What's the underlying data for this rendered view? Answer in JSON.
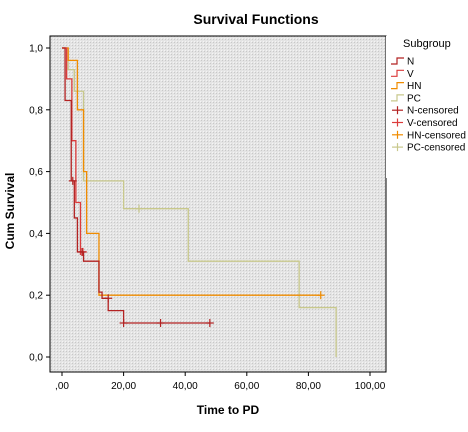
{
  "chart_data": {
    "type": "line",
    "title": "Survival Functions",
    "xlabel": "Time to PD",
    "ylabel": "Cum Survival",
    "xlim": [
      0,
      100
    ],
    "ylim": [
      0,
      1
    ],
    "x_ticks": [
      ",00",
      "20,00",
      "40,00",
      "60,00",
      "80,00",
      "100,00"
    ],
    "y_ticks": [
      "0,0",
      "0,2",
      "0,4",
      "0,6",
      "0,8",
      "1,0"
    ],
    "legend_title": "Subgroup",
    "legend_position": "right",
    "grid": false,
    "plot_background": "#eaeaea",
    "series": [
      {
        "name": "N",
        "color": "#b22222",
        "steps": [
          [
            0,
            1.0
          ],
          [
            1,
            0.83
          ],
          [
            3,
            0.57
          ],
          [
            4,
            0.45
          ],
          [
            5,
            0.34
          ],
          [
            7,
            0.31
          ],
          [
            12,
            0.21
          ],
          [
            13,
            0.19
          ],
          [
            15,
            0.15
          ],
          [
            20,
            0.11
          ],
          [
            48,
            0.11
          ]
        ],
        "censored": [
          [
            3.5,
            0.57
          ],
          [
            6.5,
            0.34
          ],
          [
            15,
            0.19
          ],
          [
            20,
            0.11
          ],
          [
            32,
            0.11
          ],
          [
            48,
            0.11
          ]
        ]
      },
      {
        "name": "V",
        "color": "#dc3c3c",
        "steps": [
          [
            0,
            1.0
          ],
          [
            1.5,
            0.9
          ],
          [
            3.2,
            0.7
          ],
          [
            4.5,
            0.5
          ],
          [
            6,
            0.33
          ]
        ],
        "censored": [
          [
            6.8,
            0.34
          ]
        ]
      },
      {
        "name": "HN",
        "color": "#f08c00",
        "steps": [
          [
            0,
            1.0
          ],
          [
            2,
            0.96
          ],
          [
            5,
            0.8
          ],
          [
            7,
            0.6
          ],
          [
            8,
            0.4
          ],
          [
            12,
            0.2
          ],
          [
            84,
            0.2
          ]
        ],
        "censored": [
          [
            84,
            0.2
          ]
        ]
      },
      {
        "name": "PC",
        "color": "#c8c88c",
        "steps": [
          [
            0,
            1.0
          ],
          [
            2,
            0.93
          ],
          [
            4,
            0.86
          ],
          [
            7,
            0.57
          ],
          [
            20,
            0.48
          ],
          [
            41,
            0.31
          ],
          [
            77,
            0.16
          ],
          [
            89,
            0.0
          ]
        ],
        "censored": [
          [
            25,
            0.48
          ]
        ]
      }
    ],
    "legend": [
      {
        "label": "N",
        "kind": "line",
        "color": "#b22222"
      },
      {
        "label": "V",
        "kind": "line",
        "color": "#dc3c3c"
      },
      {
        "label": "HN",
        "kind": "line",
        "color": "#f08c00"
      },
      {
        "label": "PC",
        "kind": "line",
        "color": "#c8c88c"
      },
      {
        "label": "N-censored",
        "kind": "censor",
        "color": "#b22222"
      },
      {
        "label": "V-censored",
        "kind": "censor",
        "color": "#dc3c3c"
      },
      {
        "label": "HN-censored",
        "kind": "censor",
        "color": "#f08c00"
      },
      {
        "label": "PC-censored",
        "kind": "censor",
        "color": "#c8c88c"
      }
    ]
  }
}
